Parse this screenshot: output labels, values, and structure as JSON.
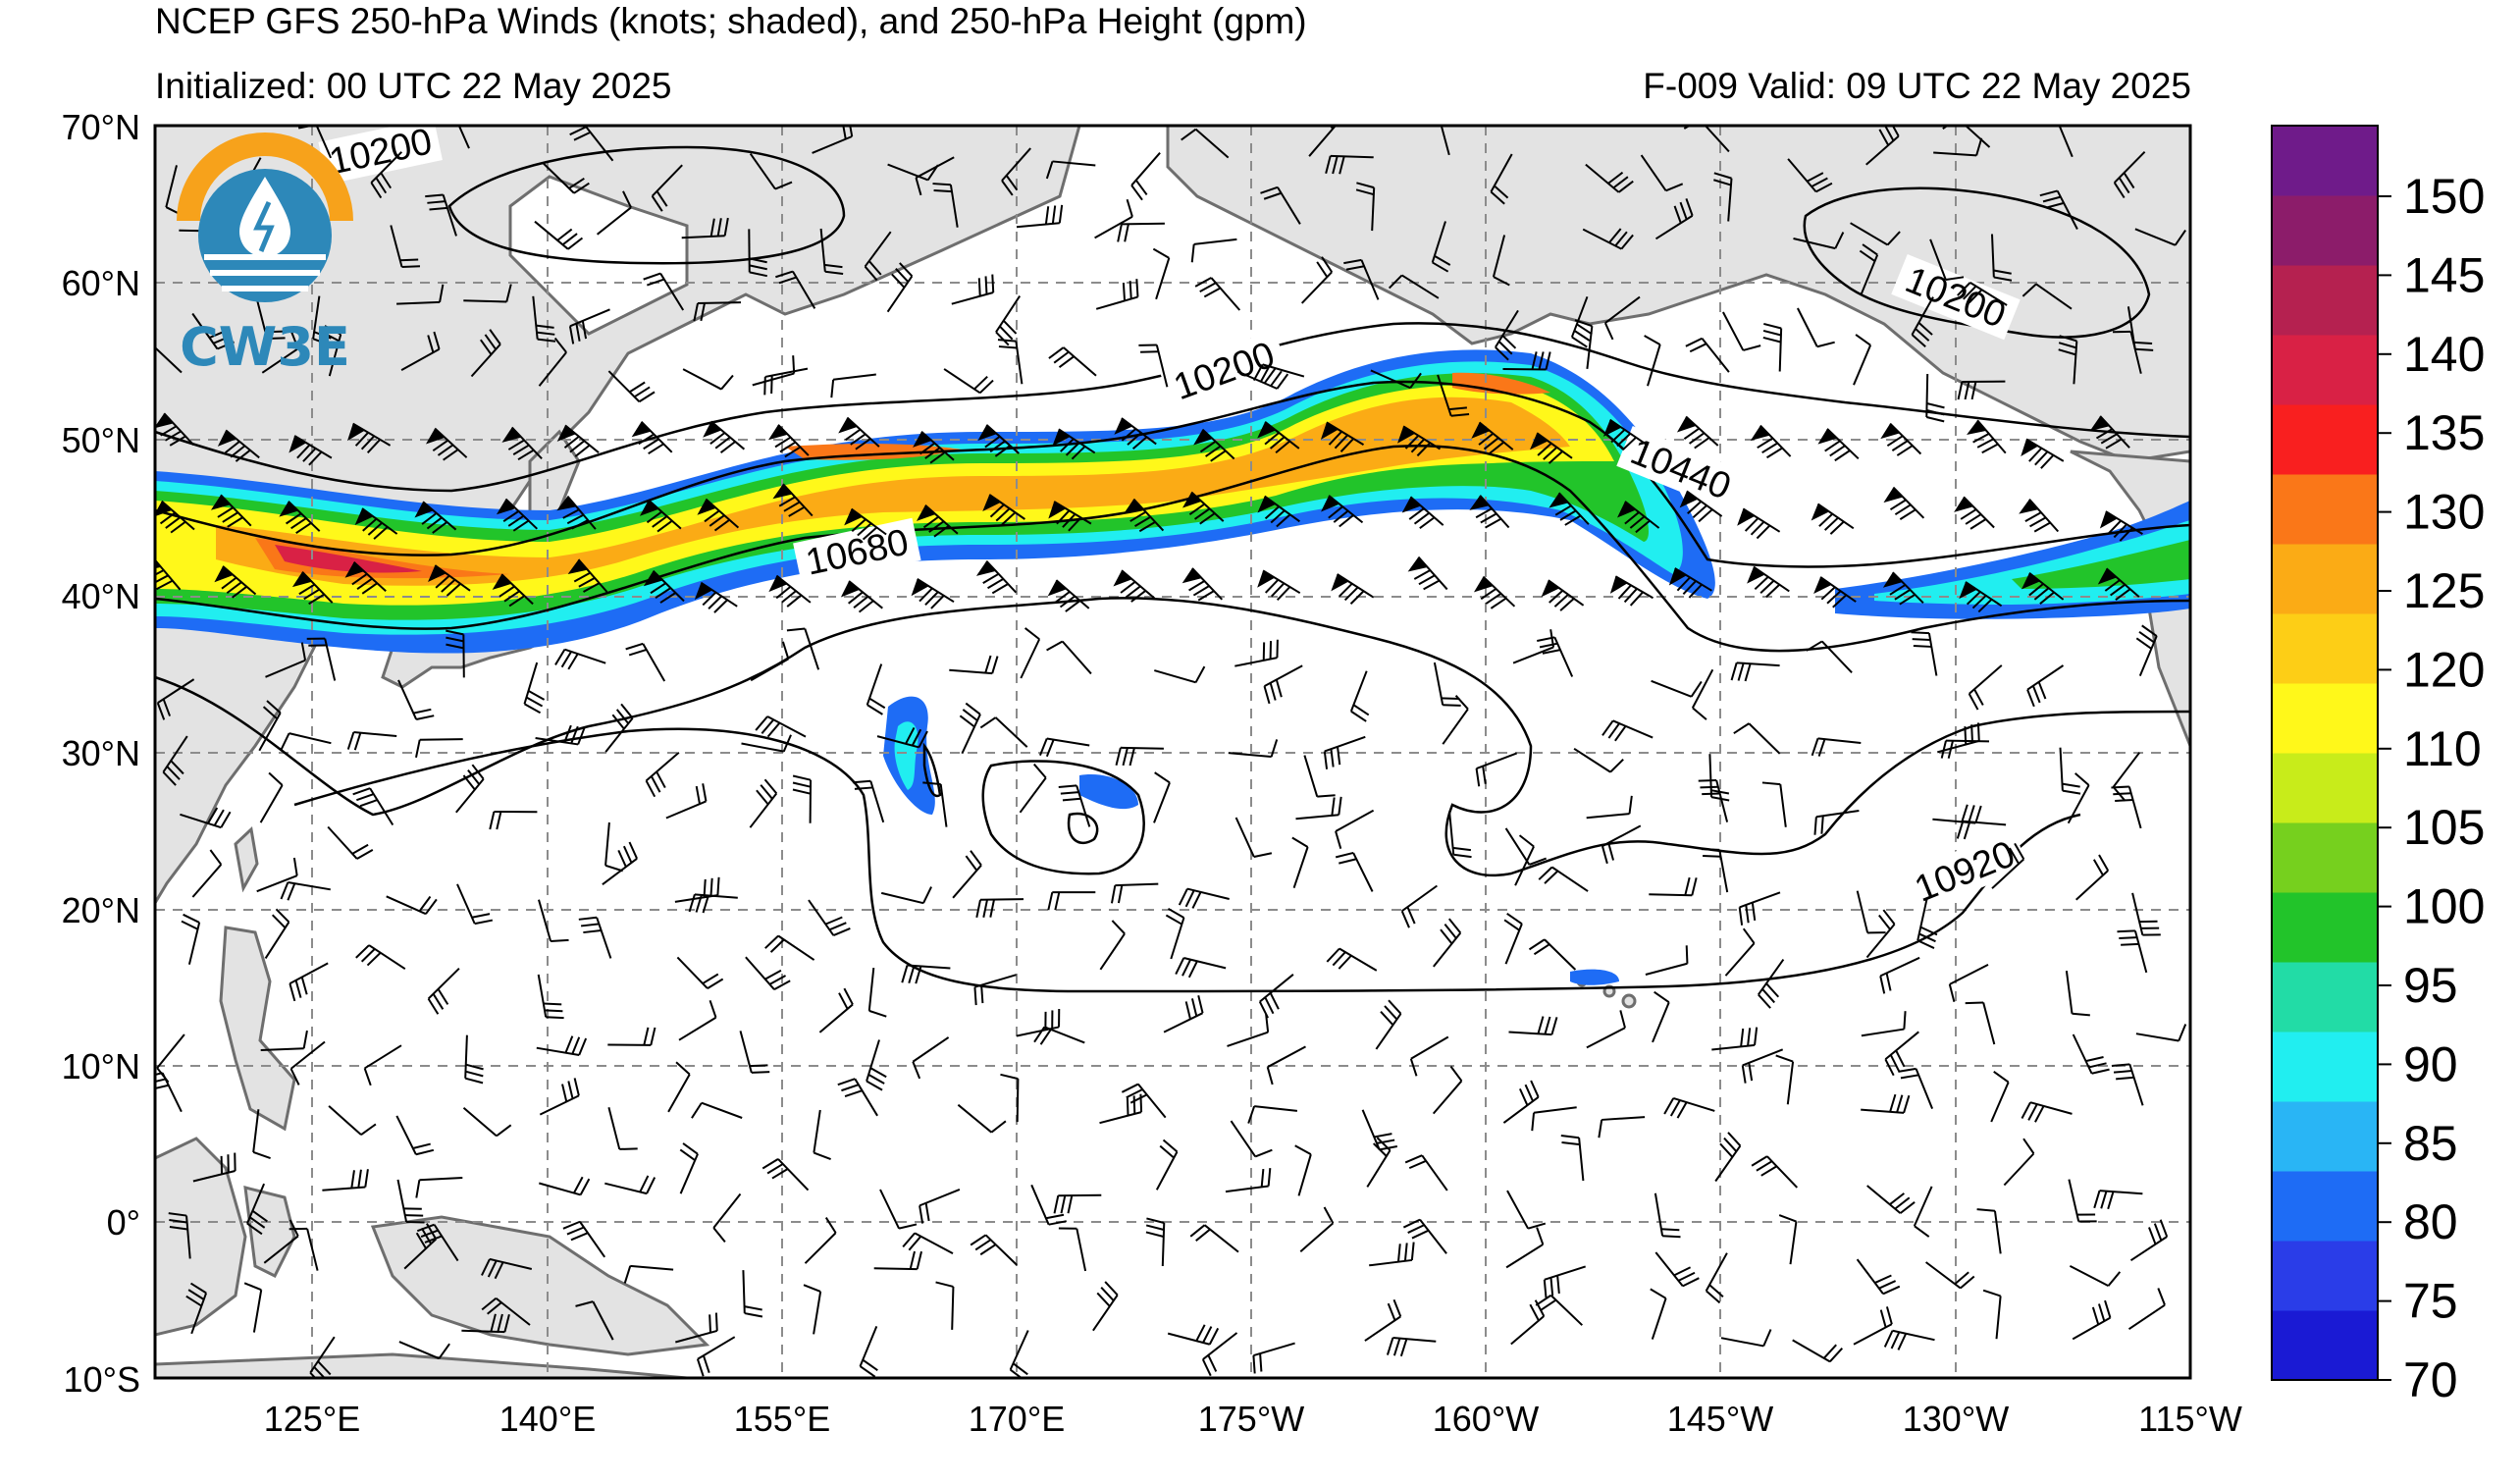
{
  "header": {
    "title": "NCEP GFS 250-hPa Winds (knots; shaded), and 250-hPa Height (gpm)",
    "initialized": "Initialized: 00 UTC 22 May 2025",
    "valid": "F-009  Valid: 09 UTC 22 May 2025"
  },
  "logo": {
    "text": "CW3E",
    "icon": "cw3e-logo-icon"
  },
  "axes": {
    "lat_labels": [
      "70°N",
      "60°N",
      "50°N",
      "40°N",
      "30°N",
      "20°N",
      "10°N",
      "0°",
      "10°S"
    ],
    "lon_labels": [
      "125°E",
      "140°E",
      "155°E",
      "170°E",
      "175°W",
      "160°W",
      "145°W",
      "130°W",
      "115°W"
    ]
  },
  "colorbar": {
    "labels": [
      "70",
      "75",
      "80",
      "85",
      "90",
      "95",
      "100",
      "105",
      "110",
      "120",
      "125",
      "130",
      "135",
      "140",
      "145",
      "150"
    ],
    "colors": [
      "#1a1ad4",
      "#2a3de8",
      "#1e6cf5",
      "#29b5f5",
      "#21eef0",
      "#22dca6",
      "#22c42a",
      "#76d01e",
      "#c8ec1a",
      "#fff81a",
      "#fdce16",
      "#fbab15",
      "#fa7718",
      "#f91f1f",
      "#d92145",
      "#b52150",
      "#8c1c6a",
      "#6f1b8a"
    ]
  },
  "contours": {
    "labels": [
      "10200",
      "10200",
      "10200",
      "10440",
      "10680",
      "10920"
    ]
  },
  "colors": {
    "land": "#e3e3e3",
    "coast": "#6e6e6e",
    "grid": "#8c8c8c",
    "contour": "#000000"
  }
}
